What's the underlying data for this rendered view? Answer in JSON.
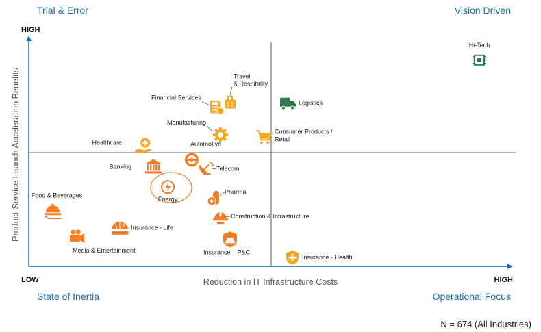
{
  "chart_data": {
    "type": "scatter",
    "title": "",
    "xlabel": "Reduction in IT Infrastructure Costs",
    "ylabel": "Product-Service Launch Acceleration Benefits",
    "x_low_label": "LOW",
    "x_high_label": "HIGH",
    "y_low_label": "LOW",
    "y_high_label": "HIGH",
    "xlim": [
      0,
      100
    ],
    "ylim": [
      0,
      100
    ],
    "quadrants": {
      "top_left": "Trial & Error",
      "top_right": "Vision Driven",
      "bottom_left": "State of Inertia",
      "bottom_right": "Operational Focus"
    },
    "footnote": "N = 674 (All Industries)",
    "colors": {
      "orange": "#f57c20",
      "green": "#2e7d4f",
      "yellow": "#f5a623",
      "axis": "#1a6db3",
      "quadrant_text": "#1a6db3"
    },
    "points": [
      {
        "name": "Hi-Tech",
        "x": 94,
        "y": 91,
        "icon": "chip-icon",
        "color": "green"
      },
      {
        "name": "Logistics",
        "x": 54,
        "y": 72,
        "icon": "truck-icon",
        "color": "green"
      },
      {
        "name": "Travel & Hospitality",
        "x": 42,
        "y": 72,
        "icon": "luggage-icon",
        "color": "yellow"
      },
      {
        "name": "Financial Services",
        "x": 39,
        "y": 70,
        "icon": "calculator-icon",
        "color": "yellow"
      },
      {
        "name": "Manufacturing",
        "x": 40,
        "y": 58,
        "icon": "gear-icon",
        "color": "yellow"
      },
      {
        "name": "Consumer Products / Retail",
        "x": 49,
        "y": 57,
        "icon": "cart-icon",
        "color": "yellow"
      },
      {
        "name": "Healthcare",
        "x": 24,
        "y": 53,
        "icon": "healthcare-hand-icon",
        "color": "yellow"
      },
      {
        "name": "Automotive",
        "x": 34,
        "y": 47,
        "icon": "steering-wheel-icon",
        "color": "orange"
      },
      {
        "name": "Banking",
        "x": 26,
        "y": 44,
        "icon": "bank-icon",
        "color": "orange"
      },
      {
        "name": "Telecom",
        "x": 37,
        "y": 43,
        "icon": "satellite-dish-icon",
        "color": "orange"
      },
      {
        "name": "Energy",
        "x": 29,
        "y": 35,
        "icon": "energy-icon",
        "color": "orange",
        "highlighted": true
      },
      {
        "name": "Pharma",
        "x": 39,
        "y": 30,
        "icon": "pill-icon",
        "color": "orange"
      },
      {
        "name": "Food & Beverages",
        "x": 5,
        "y": 25,
        "icon": "food-cloche-icon",
        "color": "orange"
      },
      {
        "name": "Construction & Infrastructure",
        "x": 40,
        "y": 22,
        "icon": "helmet-icon",
        "color": "orange"
      },
      {
        "name": "Insurance - Life",
        "x": 19,
        "y": 17,
        "icon": "umbrella-icon",
        "color": "orange"
      },
      {
        "name": "Media & Entertainment",
        "x": 10,
        "y": 13,
        "icon": "video-camera-icon",
        "color": "orange"
      },
      {
        "name": "Insurance – P&C",
        "x": 42,
        "y": 12,
        "icon": "car-shield-icon",
        "color": "orange"
      },
      {
        "name": "Insurance - Health",
        "x": 55,
        "y": 4,
        "icon": "shield-plus-icon",
        "color": "yellow"
      }
    ]
  }
}
